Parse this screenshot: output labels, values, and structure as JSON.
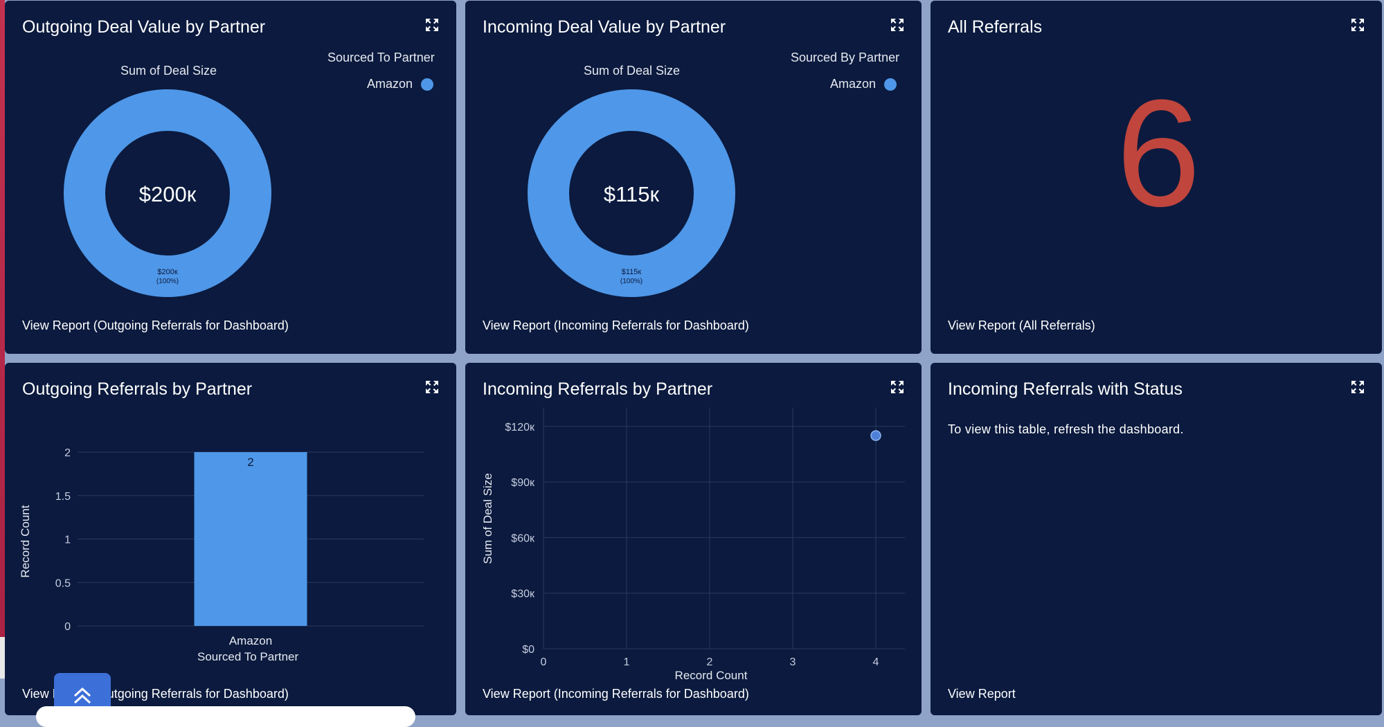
{
  "colors": {
    "tile_bg": "#0b1a3e",
    "accent": "#4f97e8",
    "metric": "#c0453d",
    "grid": "#2a3a60"
  },
  "tiles": {
    "outgoing_value": {
      "title": "Outgoing Deal Value by Partner",
      "subtitle": "Sum of Deal Size",
      "legend_title": "Sourced To Partner",
      "legend_item": "Amazon",
      "center_value": "$200к",
      "slice_label": "$200к",
      "slice_pct": "(100%)",
      "link": "View Report (Outgoing Referrals for Dashboard)"
    },
    "incoming_value": {
      "title": "Incoming Deal Value by Partner",
      "subtitle": "Sum of Deal Size",
      "legend_title": "Sourced By Partner",
      "legend_item": "Amazon",
      "center_value": "$115к",
      "slice_label": "$115к",
      "slice_pct": "(100%)",
      "link": "View Report (Incoming Referrals for Dashboard)"
    },
    "all_referrals": {
      "title": "All Referrals",
      "metric": "6",
      "link": "View Report (All Referrals)"
    },
    "outgoing_referrals": {
      "title": "Outgoing Referrals by Partner",
      "link": "View Report (Outgoing Referrals for Dashboard)"
    },
    "incoming_referrals": {
      "title": "Incoming Referrals by Partner",
      "link": "View Report (Incoming Referrals for Dashboard)"
    },
    "incoming_status": {
      "title": "Incoming Referrals with Status",
      "message": "To view this table, refresh the dashboard.",
      "link": "View Report"
    }
  },
  "chart_data": [
    {
      "id": "outgoing-donut",
      "type": "pie",
      "title": "Sum of Deal Size",
      "legend_title": "Sourced To Partner",
      "categories": [
        "Amazon"
      ],
      "values": [
        200000
      ],
      "center_label": "$200к"
    },
    {
      "id": "incoming-donut",
      "type": "pie",
      "title": "Sum of Deal Size",
      "legend_title": "Sourced By Partner",
      "categories": [
        "Amazon"
      ],
      "values": [
        115000
      ],
      "center_label": "$115к"
    },
    {
      "id": "outgoing-bar",
      "type": "bar",
      "xlabel": "Sourced To Partner",
      "ylabel": "Record Count",
      "categories": [
        "Amazon"
      ],
      "values": [
        2
      ],
      "value_labels": [
        "2"
      ],
      "ylim": [
        0,
        2
      ],
      "yticks": [
        0,
        0.5,
        1,
        1.5,
        2
      ],
      "ytick_labels": [
        "0",
        "0.5",
        "1",
        "1.5",
        "2"
      ],
      "grid": true
    },
    {
      "id": "incoming-scatter",
      "type": "scatter",
      "xlabel": "Record Count",
      "ylabel": "Sum of Deal Size",
      "points": [
        {
          "x": 4,
          "y": 115000
        }
      ],
      "xlim": [
        0,
        4.35
      ],
      "ylim": [
        0,
        130000
      ],
      "xticks": [
        0,
        1,
        2,
        3,
        4
      ],
      "xtick_labels": [
        "0",
        "1",
        "2",
        "3",
        "4"
      ],
      "yticks": [
        0,
        30000,
        60000,
        90000,
        120000
      ],
      "ytick_labels": [
        "$0",
        "$30к",
        "$60к",
        "$90к",
        "$120к"
      ],
      "grid": true
    }
  ]
}
